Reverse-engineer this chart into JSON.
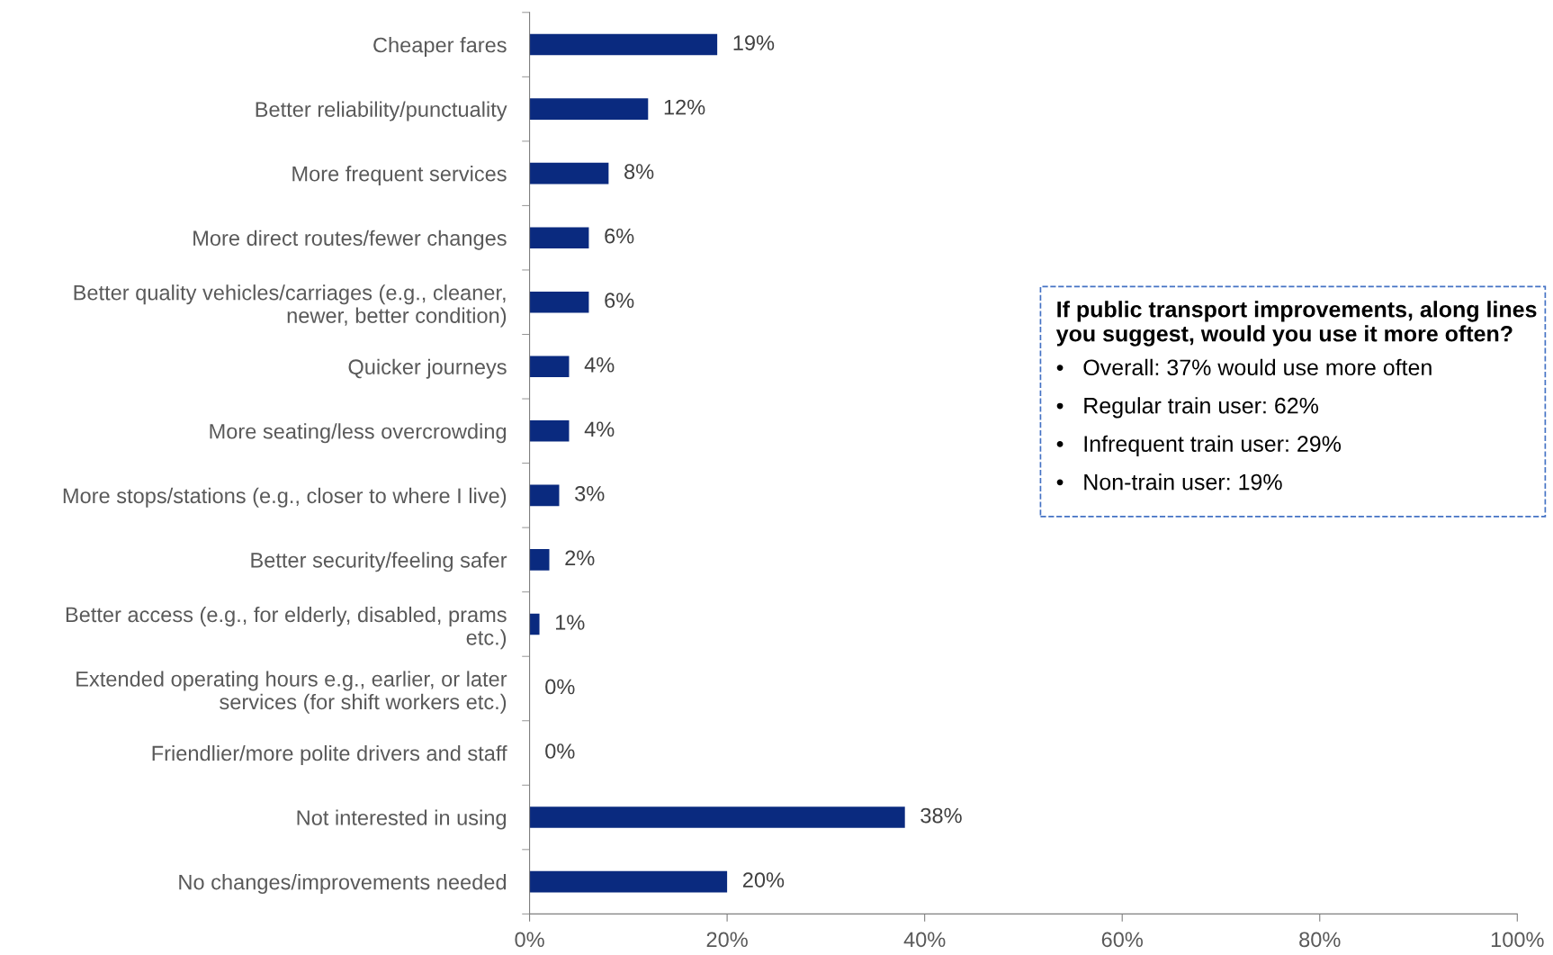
{
  "chart_data": {
    "type": "bar",
    "orientation": "horizontal",
    "categories": [
      "Cheaper fares",
      "Better reliability/punctuality",
      "More frequent services",
      "More direct routes/fewer changes",
      "Better quality vehicles/carriages (e.g., cleaner,\nnewer, better condition)",
      "Quicker journeys",
      "More seating/less overcrowding",
      "More stops/stations (e.g., closer to where I live)",
      "Better security/feeling safer",
      "Better access (e.g., for elderly, disabled, prams\netc.)",
      "Extended operating hours e.g., earlier, or later\nservices (for shift workers etc.)",
      "Friendlier/more polite drivers and staff",
      "Not interested in using",
      "No changes/improvements needed"
    ],
    "values": [
      19,
      12,
      8,
      6,
      6,
      4,
      4,
      3,
      2,
      1,
      0,
      0,
      38,
      20
    ],
    "value_labels": [
      "19%",
      "12%",
      "8%",
      "6%",
      "6%",
      "4%",
      "4%",
      "3%",
      "2%",
      "1%",
      "0%",
      "0%",
      "38%",
      "20%"
    ],
    "color": "#0a2a7f",
    "xlim": [
      0,
      100
    ],
    "xticks": [
      {
        "value": 0,
        "label": "0%"
      },
      {
        "value": 20,
        "label": "20%"
      },
      {
        "value": 40,
        "label": "40%"
      },
      {
        "value": 60,
        "label": "60%"
      },
      {
        "value": 80,
        "label": "80%"
      },
      {
        "value": 100,
        "label": "100%"
      }
    ],
    "grid": false,
    "legend": false,
    "annotations": [
      "If public transport improvements, along lines you suggest, would you use it more often?",
      "•   Overall: 37% would use more often",
      "•   Regular train user: 62%",
      "•   Infrequent train user: 29%",
      "•   Non-train user: 19%"
    ]
  }
}
